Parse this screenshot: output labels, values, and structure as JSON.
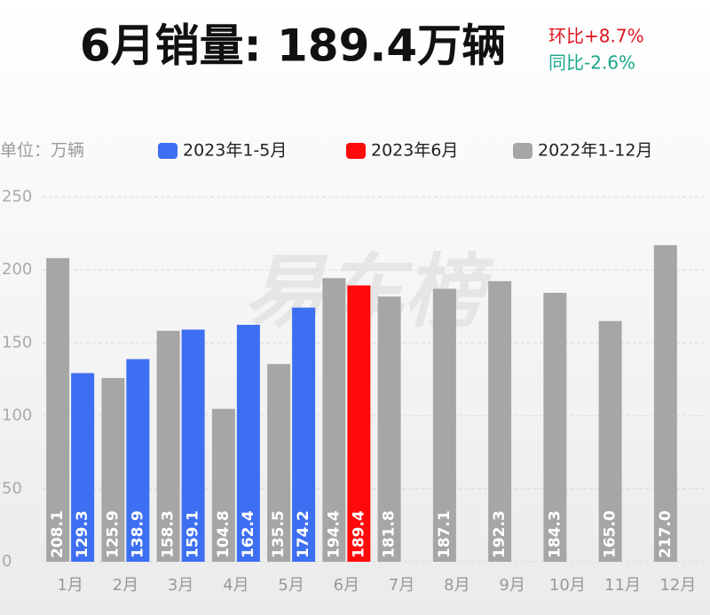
{
  "chart_data": {
    "type": "bar",
    "title": "6月销量: 189.4万辆",
    "annotations": [
      "环比+8.7%",
      "同比-2.6%"
    ],
    "unit_label": "单位：万辆",
    "watermark": "易车榜",
    "categories": [
      "1月",
      "2月",
      "3月",
      "4月",
      "5月",
      "6月",
      "7月",
      "8月",
      "9月",
      "10月",
      "11月",
      "12月"
    ],
    "series": [
      {
        "name": "2023年1-5月",
        "color": "#3d6ff2",
        "values": [
          129.3,
          138.9,
          159.1,
          162.4,
          174.2,
          null,
          null,
          null,
          null,
          null,
          null,
          null
        ],
        "value_labels": [
          "129.3",
          "138.9",
          "159.1",
          "162.4",
          "174.2",
          null,
          null,
          null,
          null,
          null,
          null,
          null
        ]
      },
      {
        "name": "2023年6月",
        "color": "#ff0a0a",
        "values": [
          null,
          null,
          null,
          null,
          null,
          189.4,
          null,
          null,
          null,
          null,
          null,
          null
        ],
        "value_labels": [
          null,
          null,
          null,
          null,
          null,
          "189.4",
          null,
          null,
          null,
          null,
          null,
          null
        ]
      },
      {
        "name": "2022年1-12月",
        "color": "#a6a6a6",
        "values": [
          208.1,
          125.9,
          158.3,
          104.8,
          135.5,
          194.4,
          181.8,
          187.1,
          192.3,
          184.3,
          165,
          217
        ],
        "value_labels": [
          "208.1",
          "125.9",
          "158.3",
          "104.8",
          "135.5",
          "194.4",
          "181.8",
          "187.1",
          "192.3",
          "184.3",
          "165.0",
          "217.0"
        ]
      }
    ],
    "ylim": [
      0,
      250
    ],
    "yticks": [
      0,
      50,
      100,
      150,
      200,
      250
    ],
    "grid": true
  }
}
